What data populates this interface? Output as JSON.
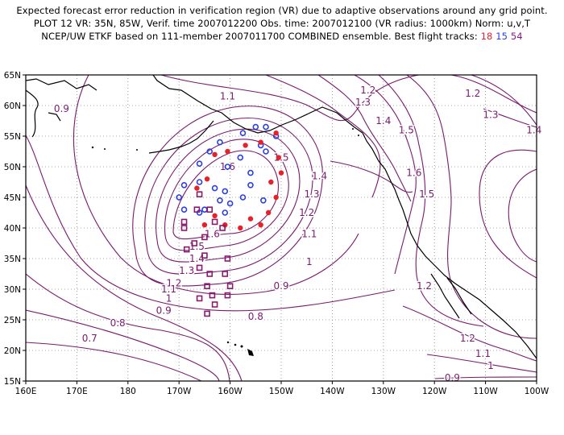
{
  "title": {
    "line1": "Expected forecast error reduction in verification region (VR) due to adaptive observations around any grid point.",
    "line2": "PLOT 12 VR: 35N, 85W, Verif. time 2007012200 Obs. time: 2007012100 (VR radius: 1000km) Norm: u,v,T",
    "line3_prefix": "NCEP/UW ETKF based on 111-member 2007011700 COMBINED ensemble.  Best flight tracks:",
    "track_red": "18",
    "track_blue": "15",
    "track_purple": "54"
  },
  "map": {
    "lon_ticks": [
      "160E",
      "170E",
      "180",
      "170W",
      "160W",
      "150W",
      "140W",
      "130W",
      "120W",
      "110W",
      "100W"
    ],
    "lat_ticks": [
      "65N",
      "60N",
      "55N",
      "50N",
      "45N",
      "40N",
      "35N",
      "30N",
      "25N",
      "20N",
      "15N"
    ],
    "contour_color": "#7a1a6e",
    "land_color": "#000000"
  },
  "contour_labels": [
    {
      "text": "0.9",
      "lon": 167,
      "lat": 59.5
    },
    {
      "text": "1.1",
      "lon": -160.5,
      "lat": 61.5
    },
    {
      "text": "1.2",
      "lon": -133,
      "lat": 62.5
    },
    {
      "text": "1.3",
      "lon": -134,
      "lat": 60.5
    },
    {
      "text": "1.4",
      "lon": -130,
      "lat": 57.5
    },
    {
      "text": "1.5",
      "lon": -125.5,
      "lat": 56
    },
    {
      "text": "1.6",
      "lon": -160.5,
      "lat": 50
    },
    {
      "text": "1.5",
      "lon": -150,
      "lat": 51.5
    },
    {
      "text": "1.6",
      "lon": -124,
      "lat": 49
    },
    {
      "text": "1.5",
      "lon": -121.5,
      "lat": 45.5
    },
    {
      "text": "1.4",
      "lon": -142.5,
      "lat": 48.5
    },
    {
      "text": "1.3",
      "lon": -144,
      "lat": 45.5
    },
    {
      "text": "1.2",
      "lon": -145,
      "lat": 42.5
    },
    {
      "text": "1.1",
      "lon": -144.5,
      "lat": 39
    },
    {
      "text": "1",
      "lon": -144.5,
      "lat": 34.5
    },
    {
      "text": "1.2",
      "lon": -112.5,
      "lat": 62
    },
    {
      "text": "1.3",
      "lon": -109,
      "lat": 58.5
    },
    {
      "text": "1.4",
      "lon": -100.5,
      "lat": 56
    },
    {
      "text": "1.6",
      "lon": -163.5,
      "lat": 39
    },
    {
      "text": "1.5",
      "lon": -166.5,
      "lat": 37
    },
    {
      "text": "1.4",
      "lon": -166.5,
      "lat": 35
    },
    {
      "text": "1.3",
      "lon": -168.5,
      "lat": 33
    },
    {
      "text": "1.2",
      "lon": -171,
      "lat": 31
    },
    {
      "text": "1.1",
      "lon": -172,
      "lat": 30
    },
    {
      "text": "1",
      "lon": -172,
      "lat": 28.5
    },
    {
      "text": "0.9",
      "lon": -150,
      "lat": 30.5
    },
    {
      "text": "0.9",
      "lon": -173,
      "lat": 26.5
    },
    {
      "text": "0.8",
      "lon": -155,
      "lat": 25.5
    },
    {
      "text": "0.8",
      "lon": -182,
      "lat": 24.5
    },
    {
      "text": "0.7",
      "lon": -187.5,
      "lat": 22
    },
    {
      "text": "1.2",
      "lon": -122,
      "lat": 30.5
    },
    {
      "text": "1.2",
      "lon": -113.5,
      "lat": 22
    },
    {
      "text": "1.1",
      "lon": -110.5,
      "lat": 19.5
    },
    {
      "text": "1",
      "lon": -109,
      "lat": 17.5
    },
    {
      "text": "0.9",
      "lon": -116.5,
      "lat": 15.5
    }
  ],
  "tracks": {
    "blue": [
      [
        -155,
        56.5
      ],
      [
        -153,
        56.5
      ],
      [
        -157.5,
        55.5
      ],
      [
        -151,
        55
      ],
      [
        -154,
        53.5
      ],
      [
        -162,
        54
      ],
      [
        -164,
        52.5
      ],
      [
        -158,
        51.5
      ],
      [
        -166,
        50.5
      ],
      [
        -160.5,
        50
      ],
      [
        -156,
        49
      ],
      [
        -169,
        47
      ],
      [
        -166,
        47.5
      ],
      [
        -163,
        46.5
      ],
      [
        -161,
        46
      ],
      [
        -157.5,
        45
      ],
      [
        -169,
        43
      ],
      [
        -165,
        43
      ],
      [
        -161,
        42.5
      ],
      [
        -153,
        52.5
      ],
      [
        -156,
        47
      ],
      [
        -153.5,
        44.5
      ],
      [
        -160,
        44
      ],
      [
        -170,
        45
      ],
      [
        -166,
        42.5
      ],
      [
        -162,
        44.5
      ]
    ],
    "red": [
      [
        -151,
        55.5
      ],
      [
        -154,
        54
      ],
      [
        -157,
        53.5
      ],
      [
        -160.5,
        52.5
      ],
      [
        -163,
        52
      ],
      [
        -150.5,
        51.5
      ],
      [
        -150,
        49
      ],
      [
        -164.5,
        48
      ],
      [
        -152,
        47.5
      ],
      [
        -151,
        45
      ],
      [
        -166.5,
        46.5
      ],
      [
        -156,
        41.5
      ],
      [
        -163,
        42
      ],
      [
        -165,
        40.5
      ],
      [
        -152.5,
        42.5
      ],
      [
        -154,
        40.5
      ],
      [
        -158,
        40
      ],
      [
        -161,
        40.5
      ]
    ],
    "purple": [
      [
        -166,
        45.5
      ],
      [
        -166.5,
        43
      ],
      [
        -164,
        43
      ],
      [
        -169,
        41
      ],
      [
        -163,
        41
      ],
      [
        -169,
        40
      ],
      [
        -161.5,
        40
      ],
      [
        -165,
        38.5
      ],
      [
        -167,
        37.5
      ],
      [
        -168.5,
        36.5
      ],
      [
        -165,
        35.5
      ],
      [
        -160.5,
        35
      ],
      [
        -166,
        33.5
      ],
      [
        -164,
        32.5
      ],
      [
        -161,
        32.5
      ],
      [
        -164.5,
        30.5
      ],
      [
        -160,
        30.5
      ],
      [
        -163.5,
        29
      ],
      [
        -160.5,
        29
      ],
      [
        -163,
        27.5
      ],
      [
        -166,
        28.5
      ],
      [
        -164.5,
        26
      ]
    ]
  }
}
